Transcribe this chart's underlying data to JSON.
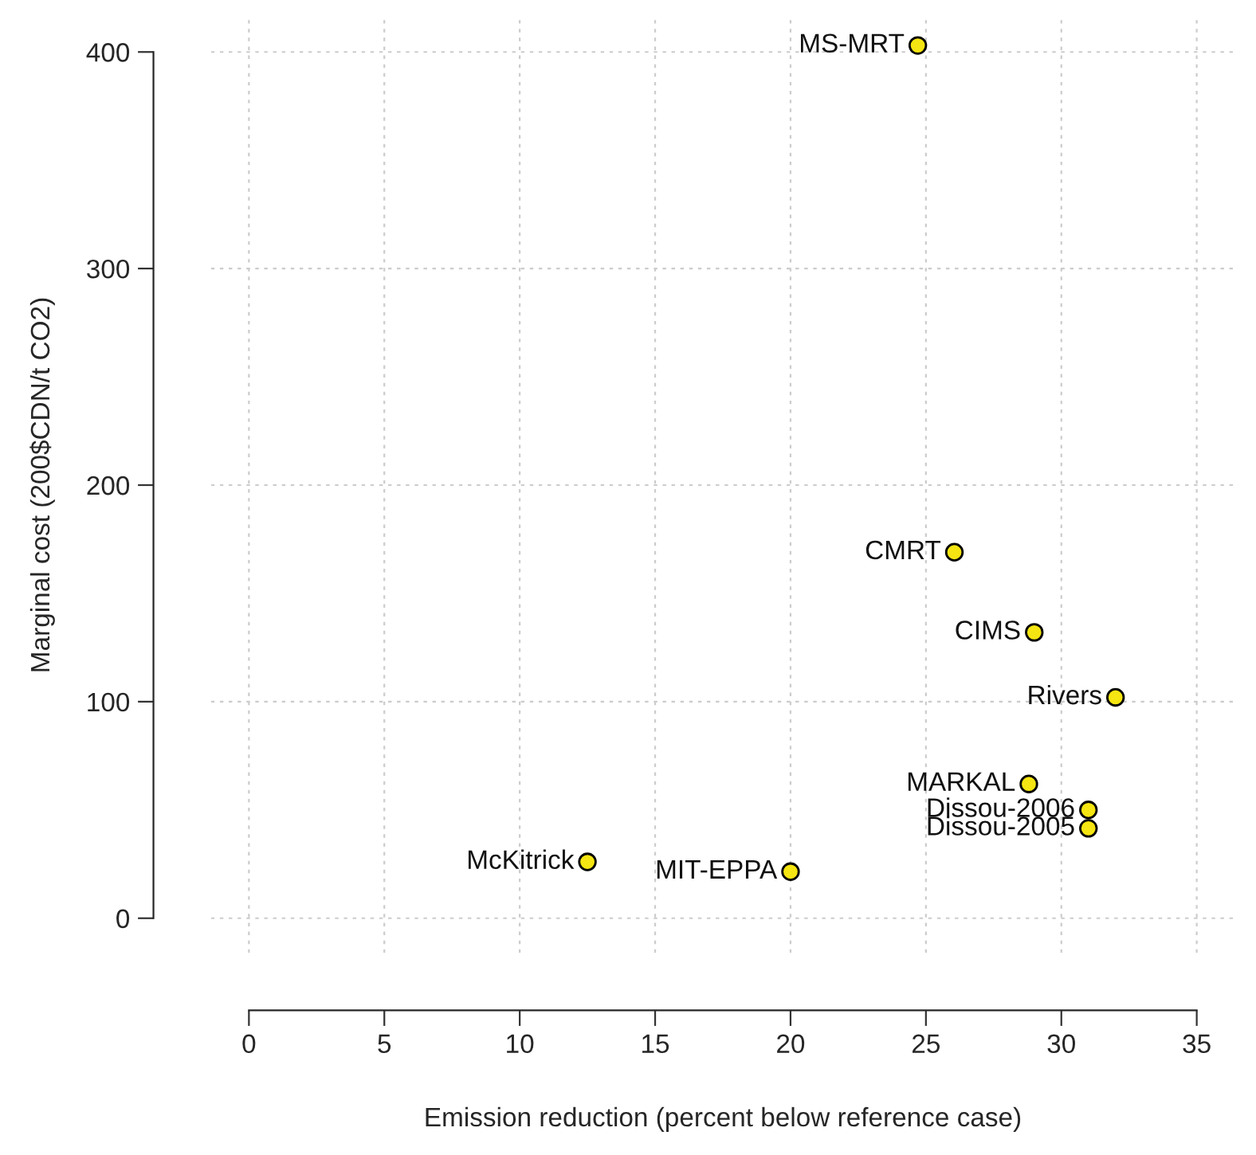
{
  "chart_data": {
    "type": "scatter",
    "xlabel": "Emission reduction (percent below reference case)",
    "ylabel": "Marginal cost (200$CDN/t CO2)",
    "series": [
      {
        "color": "#f5e512",
        "x": [
          24.7,
          26.05,
          29.0,
          32.0,
          28.8,
          31.0,
          31.0,
          12.5,
          20.0
        ],
        "values": [
          403,
          169,
          132,
          102,
          62,
          50,
          41.5,
          26,
          21.5
        ]
      }
    ],
    "annotations": [
      {
        "text": "MS-MRT",
        "x": 24.7,
        "y": 403
      },
      {
        "text": "CMRT",
        "x": 26.05,
        "y": 169
      },
      {
        "text": "CIMS",
        "x": 29.0,
        "y": 132
      },
      {
        "text": "Rivers",
        "x": 32.0,
        "y": 102
      },
      {
        "text": "MARKAL",
        "x": 28.8,
        "y": 62
      },
      {
        "text": "Dissou-2006",
        "x": 31.0,
        "y": 50
      },
      {
        "text": "Dissou-2005",
        "x": 31.0,
        "y": 41.5
      },
      {
        "text": "McKitrick",
        "x": 12.5,
        "y": 26
      },
      {
        "text": "MIT-EPPA",
        "x": 20.0,
        "y": 21.5
      }
    ],
    "xlim": [
      -1.4,
      36.4
    ],
    "ylim": [
      -16,
      416
    ],
    "xticks": [
      0,
      5,
      10,
      15,
      20,
      25,
      30,
      35
    ],
    "yticks": [
      0,
      100,
      200,
      300,
      400
    ],
    "grid": true,
    "marker": "circle",
    "legend": false
  }
}
